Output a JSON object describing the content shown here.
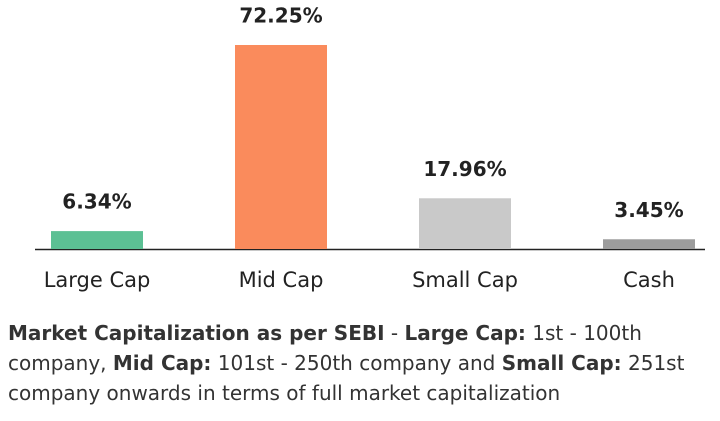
{
  "chart_data": {
    "type": "bar",
    "categories": [
      "Large Cap",
      "Mid Cap",
      "Small Cap",
      "Cash"
    ],
    "values": [
      6.34,
      72.25,
      17.96,
      3.45
    ],
    "value_labels": [
      "6.34%",
      "72.25%",
      "17.96%",
      "3.45%"
    ],
    "colors": [
      "#5cc094",
      "#fa8b5c",
      "#c9c9c9",
      "#9c9c9c"
    ]
  },
  "note": [
    {
      "text": "Market Capitalization as per SEBI",
      "bold": true
    },
    {
      "text": " - ",
      "bold": false
    },
    {
      "text": "Large Cap:",
      "bold": true
    },
    {
      "text": " 1st - 100th company, ",
      "bold": false
    },
    {
      "text": "Mid Cap:",
      "bold": true
    },
    {
      "text": " 101st - 250th company and ",
      "bold": false
    },
    {
      "text": "Small Cap:",
      "bold": true
    },
    {
      "text": " 251st company onwards in terms of full market capitalization",
      "bold": false
    }
  ]
}
